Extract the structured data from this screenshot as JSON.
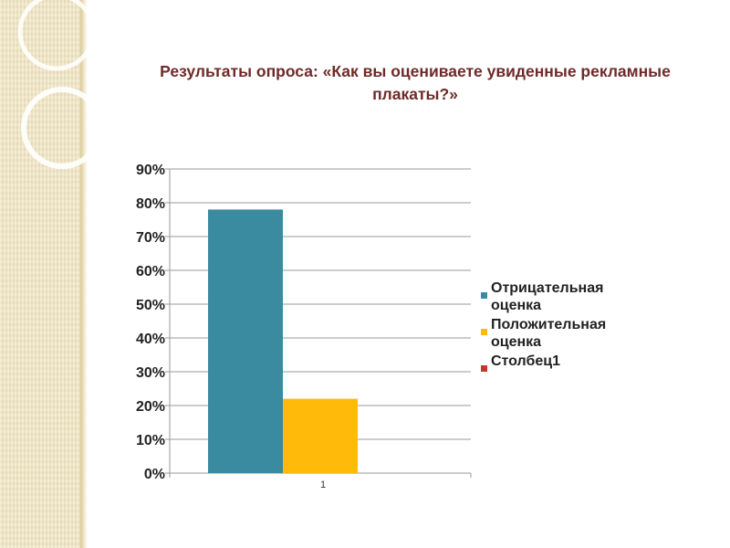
{
  "title": "Результаты опроса: «Как вы оцениваете увиденные рекламные плакаты?»",
  "colors": {
    "accent_title": "#6e2a28",
    "series_1": "#3a8aa0",
    "series_2": "#ffba0a",
    "series_3": "#c0392b"
  },
  "chart_data": {
    "type": "bar",
    "title": "Результаты опроса: «Как вы оцениваете увиденные рекламные плакаты?»",
    "categories": [
      "1"
    ],
    "series": [
      {
        "name": "Отрицательная оценка",
        "values": [
          0.78
        ],
        "color": "#3a8aa0"
      },
      {
        "name": "Положительная оценка",
        "values": [
          0.22
        ],
        "color": "#ffba0a"
      },
      {
        "name": "Столбец1",
        "values": [
          0
        ],
        "color": "#c0392b"
      }
    ],
    "ylim": [
      0,
      0.9
    ],
    "yticks": [
      "0%",
      "10%",
      "20%",
      "30%",
      "40%",
      "50%",
      "60%",
      "70%",
      "80%",
      "90%"
    ],
    "xlabel": "",
    "ylabel": "",
    "grid": true,
    "legend_position": "right"
  }
}
